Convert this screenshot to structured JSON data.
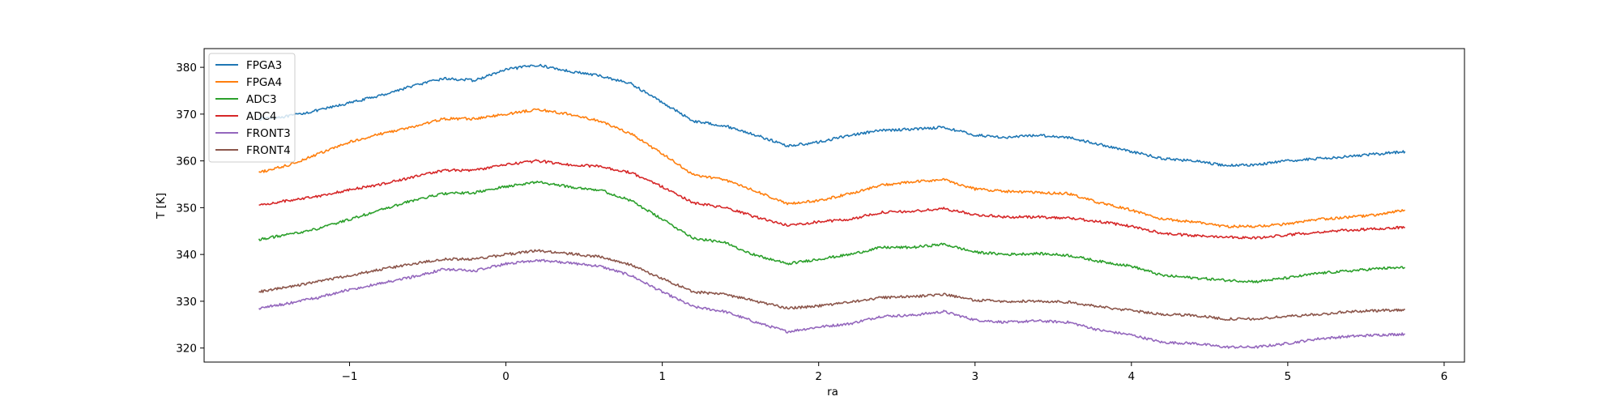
{
  "chart_data": {
    "type": "line",
    "xlabel": "ra",
    "ylabel": "T [K]",
    "xlim": [
      -1.93,
      6.13
    ],
    "ylim": [
      317,
      384
    ],
    "xticks": [
      -1,
      0,
      1,
      2,
      3,
      4,
      5,
      6
    ],
    "xtick_labels": [
      "−1",
      "0",
      "1",
      "2",
      "3",
      "4",
      "5",
      "6"
    ],
    "yticks": [
      320,
      330,
      340,
      350,
      360,
      370,
      380
    ],
    "ytick_labels": [
      "320",
      "330",
      "340",
      "350",
      "360",
      "370",
      "380"
    ],
    "legend_position": "top-left",
    "grid": false,
    "x": [
      -1.58,
      -1.4,
      -1.2,
      -1.0,
      -0.8,
      -0.6,
      -0.4,
      -0.2,
      0.0,
      0.2,
      0.4,
      0.6,
      0.8,
      1.0,
      1.2,
      1.4,
      1.6,
      1.8,
      2.0,
      2.2,
      2.4,
      2.6,
      2.8,
      3.0,
      3.2,
      3.4,
      3.6,
      3.8,
      4.0,
      4.2,
      4.4,
      4.6,
      4.8,
      5.0,
      5.2,
      5.4,
      5.58,
      5.75
    ],
    "series": [
      {
        "name": "FPGA3",
        "color": "#1f77b4",
        "values": [
          369.0,
          369.5,
          370.8,
          372.4,
          374.0,
          376.0,
          377.6,
          377.2,
          379.5,
          380.5,
          379.2,
          378.2,
          376.5,
          372.5,
          368.5,
          367.5,
          365.5,
          363.2,
          364.0,
          365.5,
          366.5,
          366.8,
          367.2,
          365.5,
          365.0,
          365.5,
          365.0,
          363.5,
          362.0,
          360.5,
          360.0,
          359.0,
          359.2,
          360.0,
          360.5,
          361.0,
          361.5,
          362.0
        ]
      },
      {
        "name": "FPGA4",
        "color": "#ff7f0e",
        "values": [
          357.5,
          359.0,
          361.5,
          364.0,
          365.8,
          367.2,
          369.0,
          369.0,
          370.0,
          371.0,
          370.0,
          368.5,
          365.8,
          361.5,
          357.0,
          356.0,
          353.5,
          350.8,
          351.5,
          353.0,
          354.8,
          355.5,
          356.0,
          354.0,
          353.5,
          353.2,
          353.0,
          351.0,
          349.5,
          347.5,
          347.0,
          346.0,
          346.0,
          346.5,
          347.5,
          348.0,
          348.5,
          349.5
        ]
      },
      {
        "name": "ADC3",
        "color": "#2ca02c",
        "values": [
          343.2,
          344.2,
          345.5,
          347.5,
          349.5,
          351.5,
          353.0,
          353.2,
          354.5,
          355.5,
          354.5,
          353.8,
          351.5,
          347.5,
          343.5,
          342.5,
          339.8,
          338.0,
          339.0,
          340.0,
          341.5,
          341.5,
          342.2,
          340.5,
          340.0,
          340.2,
          339.8,
          338.5,
          337.5,
          335.5,
          335.0,
          334.5,
          334.2,
          335.0,
          336.0,
          336.5,
          337.0,
          337.2
        ]
      },
      {
        "name": "ADC4",
        "color": "#d62728",
        "values": [
          350.5,
          351.5,
          352.5,
          353.8,
          355.0,
          356.5,
          358.0,
          358.0,
          359.2,
          360.0,
          359.2,
          358.8,
          357.5,
          354.5,
          351.0,
          350.0,
          348.0,
          346.2,
          347.0,
          347.5,
          349.0,
          349.2,
          349.8,
          348.5,
          348.0,
          348.0,
          347.8,
          347.0,
          346.0,
          344.5,
          344.0,
          343.8,
          343.5,
          344.2,
          344.8,
          345.2,
          345.5,
          345.8
        ]
      },
      {
        "name": "FRONT3",
        "color": "#9467bd",
        "values": [
          328.5,
          329.5,
          330.8,
          332.5,
          333.8,
          335.2,
          336.8,
          336.5,
          338.0,
          338.8,
          338.2,
          337.5,
          335.5,
          332.0,
          328.8,
          327.8,
          325.5,
          323.5,
          324.5,
          325.2,
          326.8,
          327.0,
          327.8,
          326.0,
          325.5,
          325.8,
          325.5,
          323.8,
          322.8,
          321.2,
          321.0,
          320.2,
          320.2,
          321.0,
          322.0,
          322.5,
          322.8,
          323.0
        ]
      },
      {
        "name": "FRONT4",
        "color": "#8c564b",
        "values": [
          332.0,
          333.0,
          334.2,
          335.5,
          336.8,
          338.0,
          339.0,
          339.0,
          340.0,
          340.8,
          340.2,
          339.5,
          337.8,
          334.8,
          332.0,
          331.5,
          330.0,
          328.5,
          329.0,
          329.8,
          330.8,
          331.0,
          331.5,
          330.2,
          330.0,
          330.0,
          329.8,
          328.8,
          328.0,
          327.2,
          327.0,
          326.2,
          326.2,
          326.8,
          327.2,
          327.8,
          328.0,
          328.2
        ]
      }
    ]
  }
}
